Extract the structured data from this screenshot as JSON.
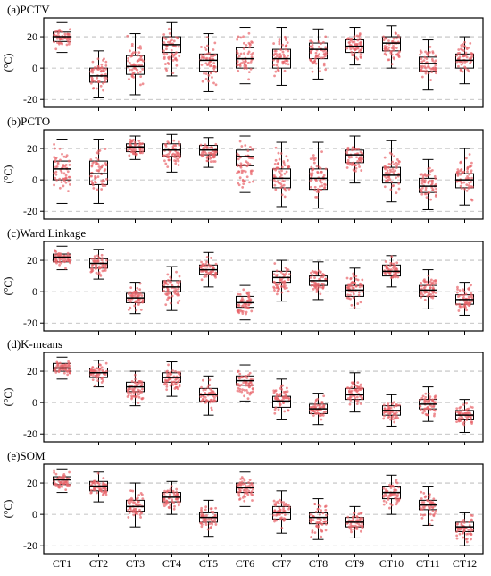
{
  "chart_data": {
    "type": "box",
    "ylabel": "(°C)",
    "categories": [
      "CT1",
      "CT2",
      "CT3",
      "CT4",
      "CT5",
      "CT6",
      "CT7",
      "CT8",
      "CT9",
      "CT10",
      "CT11",
      "CT12"
    ],
    "ylim": [
      -25,
      32
    ],
    "yticks": [
      -20,
      0,
      20
    ],
    "grid": "horizontal dashed",
    "colors": {
      "box_median": "#000000",
      "points": "#e8646a",
      "grid": "#b0b0b0"
    },
    "panels": [
      {
        "title": "(a)PCTV",
        "boxes": [
          {
            "min": 10,
            "q1": 17,
            "median": 20,
            "q3": 23,
            "max": 29
          },
          {
            "min": -19,
            "q1": -9,
            "median": -5,
            "q3": 0,
            "max": 11
          },
          {
            "min": -17,
            "q1": -4,
            "median": 1,
            "q3": 8,
            "max": 22
          },
          {
            "min": -5,
            "q1": 10,
            "median": 15,
            "q3": 20,
            "max": 29
          },
          {
            "min": -15,
            "q1": -2,
            "median": 5,
            "q3": 9,
            "max": 22
          },
          {
            "min": -10,
            "q1": 0,
            "median": 6,
            "q3": 13,
            "max": 26
          },
          {
            "min": -11,
            "q1": 0,
            "median": 6,
            "q3": 12,
            "max": 26
          },
          {
            "min": -7,
            "q1": 6,
            "median": 12,
            "q3": 16,
            "max": 25
          },
          {
            "min": 2,
            "q1": 10,
            "median": 14,
            "q3": 18,
            "max": 26
          },
          {
            "min": 0,
            "q1": 11,
            "median": 16,
            "q3": 20,
            "max": 27
          },
          {
            "min": -14,
            "q1": -2,
            "median": 3,
            "q3": 7,
            "max": 18
          },
          {
            "min": -10,
            "q1": 0,
            "median": 5,
            "q3": 9,
            "max": 20
          }
        ]
      },
      {
        "title": "(b)PCTO",
        "boxes": [
          {
            "min": -15,
            "q1": 0,
            "median": 7,
            "q3": 12,
            "max": 26
          },
          {
            "min": -15,
            "q1": -3,
            "median": 4,
            "q3": 12,
            "max": 26
          },
          {
            "min": 13,
            "q1": 18,
            "median": 21,
            "q3": 23,
            "max": 28
          },
          {
            "min": 5,
            "q1": 15,
            "median": 19,
            "q3": 23,
            "max": 29
          },
          {
            "min": 8,
            "q1": 16,
            "median": 19,
            "q3": 22,
            "max": 27
          },
          {
            "min": -8,
            "q1": 9,
            "median": 15,
            "q3": 19,
            "max": 28
          },
          {
            "min": -17,
            "q1": -5,
            "median": 1,
            "q3": 7,
            "max": 24
          },
          {
            "min": -18,
            "q1": -6,
            "median": 1,
            "q3": 7,
            "max": 24
          },
          {
            "min": -2,
            "q1": 11,
            "median": 16,
            "q3": 19,
            "max": 28
          },
          {
            "min": -14,
            "q1": -2,
            "median": 3,
            "q3": 8,
            "max": 25
          },
          {
            "min": -19,
            "q1": -8,
            "median": -4,
            "q3": 1,
            "max": 13
          },
          {
            "min": -16,
            "q1": -5,
            "median": 0,
            "q3": 4,
            "max": 20
          }
        ]
      },
      {
        "title": "(c)Ward Linkage",
        "boxes": [
          {
            "min": 14,
            "q1": 19,
            "median": 22,
            "q3": 24,
            "max": 29
          },
          {
            "min": 8,
            "q1": 15,
            "median": 18,
            "q3": 21,
            "max": 27
          },
          {
            "min": -14,
            "q1": -7,
            "median": -4,
            "q3": -1,
            "max": 6
          },
          {
            "min": -12,
            "q1": 0,
            "median": 3,
            "q3": 7,
            "max": 16
          },
          {
            "min": 3,
            "q1": 11,
            "median": 14,
            "q3": 17,
            "max": 25
          },
          {
            "min": -18,
            "q1": -10,
            "median": -7,
            "q3": -3,
            "max": 4
          },
          {
            "min": -6,
            "q1": 6,
            "median": 9,
            "q3": 13,
            "max": 20
          },
          {
            "min": -5,
            "q1": 4,
            "median": 7,
            "q3": 10,
            "max": 19
          },
          {
            "min": -11,
            "q1": -3,
            "median": 1,
            "q3": 4,
            "max": 15
          },
          {
            "min": 3,
            "q1": 10,
            "median": 13,
            "q3": 17,
            "max": 23
          },
          {
            "min": -11,
            "q1": -3,
            "median": 1,
            "q3": 4,
            "max": 14
          },
          {
            "min": -15,
            "q1": -8,
            "median": -5,
            "q3": -2,
            "max": 6
          }
        ]
      },
      {
        "title": "(d)K-means",
        "boxes": [
          {
            "min": 15,
            "q1": 20,
            "median": 22,
            "q3": 25,
            "max": 29
          },
          {
            "min": 10,
            "q1": 16,
            "median": 19,
            "q3": 22,
            "max": 27
          },
          {
            "min": -2,
            "q1": 7,
            "median": 10,
            "q3": 13,
            "max": 20
          },
          {
            "min": 4,
            "q1": 13,
            "median": 16,
            "q3": 19,
            "max": 26
          },
          {
            "min": -8,
            "q1": 1,
            "median": 5,
            "q3": 9,
            "max": 17
          },
          {
            "min": 1,
            "q1": 11,
            "median": 14,
            "q3": 17,
            "max": 24
          },
          {
            "min": -11,
            "q1": -3,
            "median": 1,
            "q3": 4,
            "max": 15
          },
          {
            "min": -14,
            "q1": -7,
            "median": -4,
            "q3": -1,
            "max": 6
          },
          {
            "min": -6,
            "q1": 2,
            "median": 5,
            "q3": 9,
            "max": 19
          },
          {
            "min": -15,
            "q1": -8,
            "median": -5,
            "q3": -2,
            "max": 5
          },
          {
            "min": -12,
            "q1": -4,
            "median": -1,
            "q3": 2,
            "max": 10
          },
          {
            "min": -19,
            "q1": -11,
            "median": -8,
            "q3": -5,
            "max": 2
          }
        ]
      },
      {
        "title": "(e)SOM",
        "boxes": [
          {
            "min": 14,
            "q1": 19,
            "median": 22,
            "q3": 24,
            "max": 29
          },
          {
            "min": 8,
            "q1": 15,
            "median": 18,
            "q3": 21,
            "max": 27
          },
          {
            "min": -8,
            "q1": 2,
            "median": 5,
            "q3": 9,
            "max": 20
          },
          {
            "min": 0,
            "q1": 8,
            "median": 11,
            "q3": 14,
            "max": 21
          },
          {
            "min": -14,
            "q1": -5,
            "median": -2,
            "q3": 1,
            "max": 9
          },
          {
            "min": 5,
            "q1": 14,
            "median": 17,
            "q3": 20,
            "max": 27
          },
          {
            "min": -12,
            "q1": -3,
            "median": 1,
            "q3": 5,
            "max": 15
          },
          {
            "min": -16,
            "q1": -6,
            "median": -2,
            "q3": 1,
            "max": 10
          },
          {
            "min": -15,
            "q1": -8,
            "median": -5,
            "q3": -2,
            "max": 5
          },
          {
            "min": 0,
            "q1": 10,
            "median": 14,
            "q3": 18,
            "max": 25
          },
          {
            "min": -7,
            "q1": 3,
            "median": 6,
            "q3": 9,
            "max": 18
          },
          {
            "min": -20,
            "q1": -11,
            "median": -8,
            "q3": -5,
            "max": 1
          }
        ]
      }
    ]
  }
}
